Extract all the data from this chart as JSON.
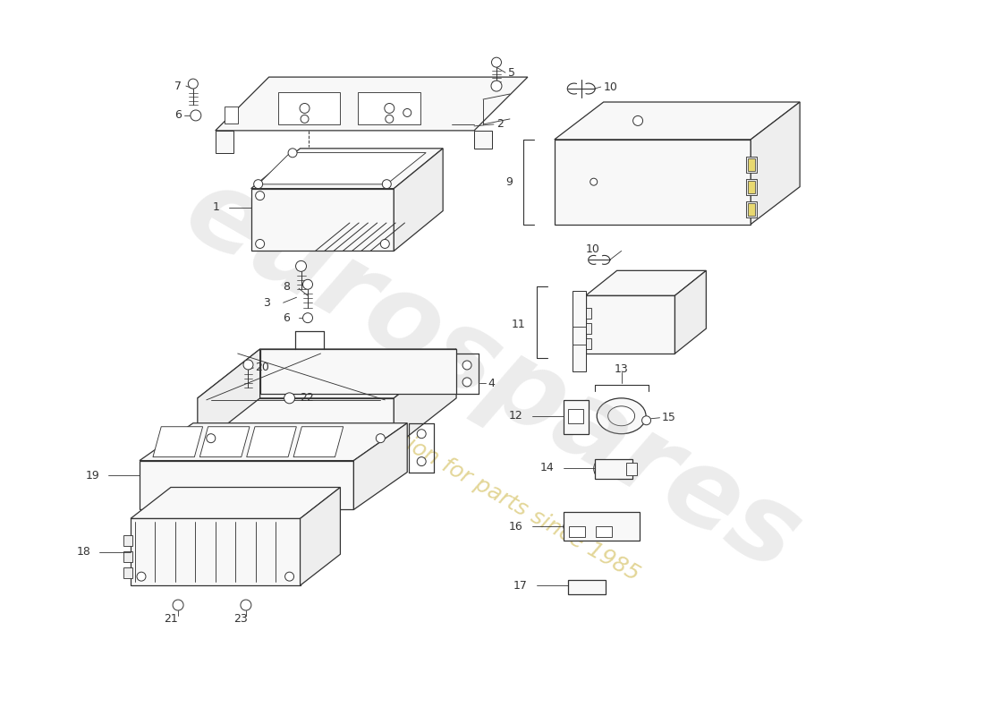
{
  "bg_color": "#ffffff",
  "line_color": "#333333",
  "fill_light": "#f8f8f8",
  "fill_mid": "#eeeeee",
  "fill_dark": "#e0e0e0",
  "wm_gray": "#cccccc",
  "wm_yellow": "#d4c060",
  "label_fs": 9
}
